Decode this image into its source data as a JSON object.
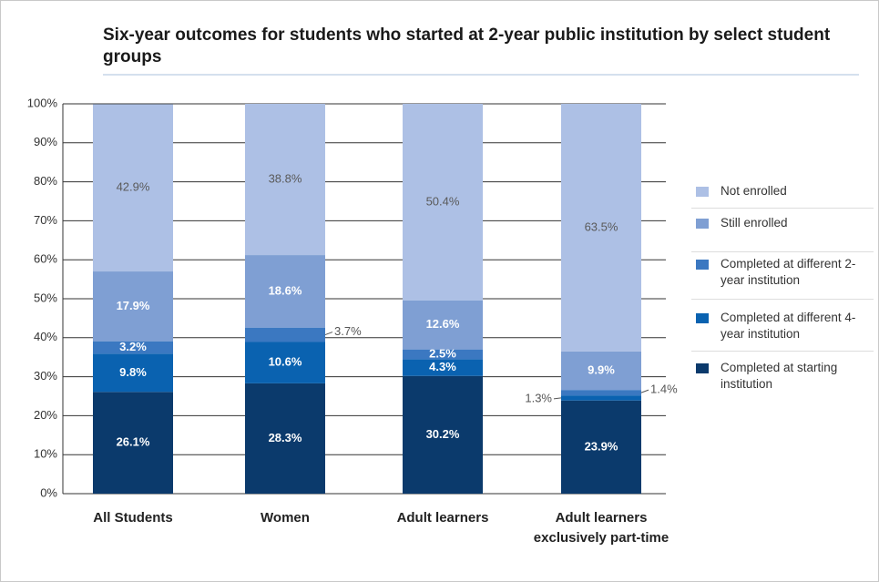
{
  "chart_data": {
    "type": "stacked_bar",
    "title": "Six-year outcomes for students who started at 2-year public institution by select student groups",
    "categories": [
      "All Students",
      "Women",
      "Adult learners",
      "Adult learners exclusively part-time"
    ],
    "series": [
      {
        "name": "Completed at starting institution",
        "color": "#0b3a6c",
        "values": [
          26.1,
          28.3,
          30.2,
          23.9
        ],
        "value_labels": [
          "26.1%",
          "28.3%",
          "30.2%",
          "23.9%"
        ]
      },
      {
        "name": "Completed at different 4-year institution",
        "color": "#0a62b0",
        "values": [
          9.8,
          10.6,
          4.3,
          1.3
        ],
        "value_labels": [
          "9.8%",
          "10.6%",
          "4.3%",
          "1.3%"
        ]
      },
      {
        "name": "Completed at different 2-year institution",
        "color": "#3b78c1",
        "values": [
          3.2,
          3.7,
          2.5,
          1.4
        ],
        "value_labels": [
          "3.2%",
          "3.7%",
          "2.5%",
          "1.4%"
        ]
      },
      {
        "name": "Still enrolled",
        "color": "#7f9fd3",
        "values": [
          17.9,
          18.6,
          12.6,
          9.9
        ],
        "value_labels": [
          "17.9%",
          "18.6%",
          "12.6%",
          "9.9%"
        ]
      },
      {
        "name": "Not enrolled",
        "color": "#adc0e5",
        "values": [
          42.9,
          38.8,
          50.4,
          63.5
        ],
        "value_labels": [
          "42.9%",
          "38.8%",
          "50.4%",
          "63.5%"
        ]
      }
    ],
    "ylim": [
      0,
      100
    ],
    "yticks": [
      {
        "value": 0,
        "label": "0%"
      },
      {
        "value": 10,
        "label": "10%"
      },
      {
        "value": 20,
        "label": "20%"
      },
      {
        "value": 30,
        "label": "30%"
      },
      {
        "value": 40,
        "label": "40%"
      },
      {
        "value": 50,
        "label": "50%"
      },
      {
        "value": 60,
        "label": "60%"
      },
      {
        "value": 70,
        "label": "70%"
      },
      {
        "value": 80,
        "label": "80%"
      },
      {
        "value": 90,
        "label": "90%"
      },
      {
        "value": 100,
        "label": "100%"
      }
    ],
    "grid": true,
    "legend": "right"
  }
}
